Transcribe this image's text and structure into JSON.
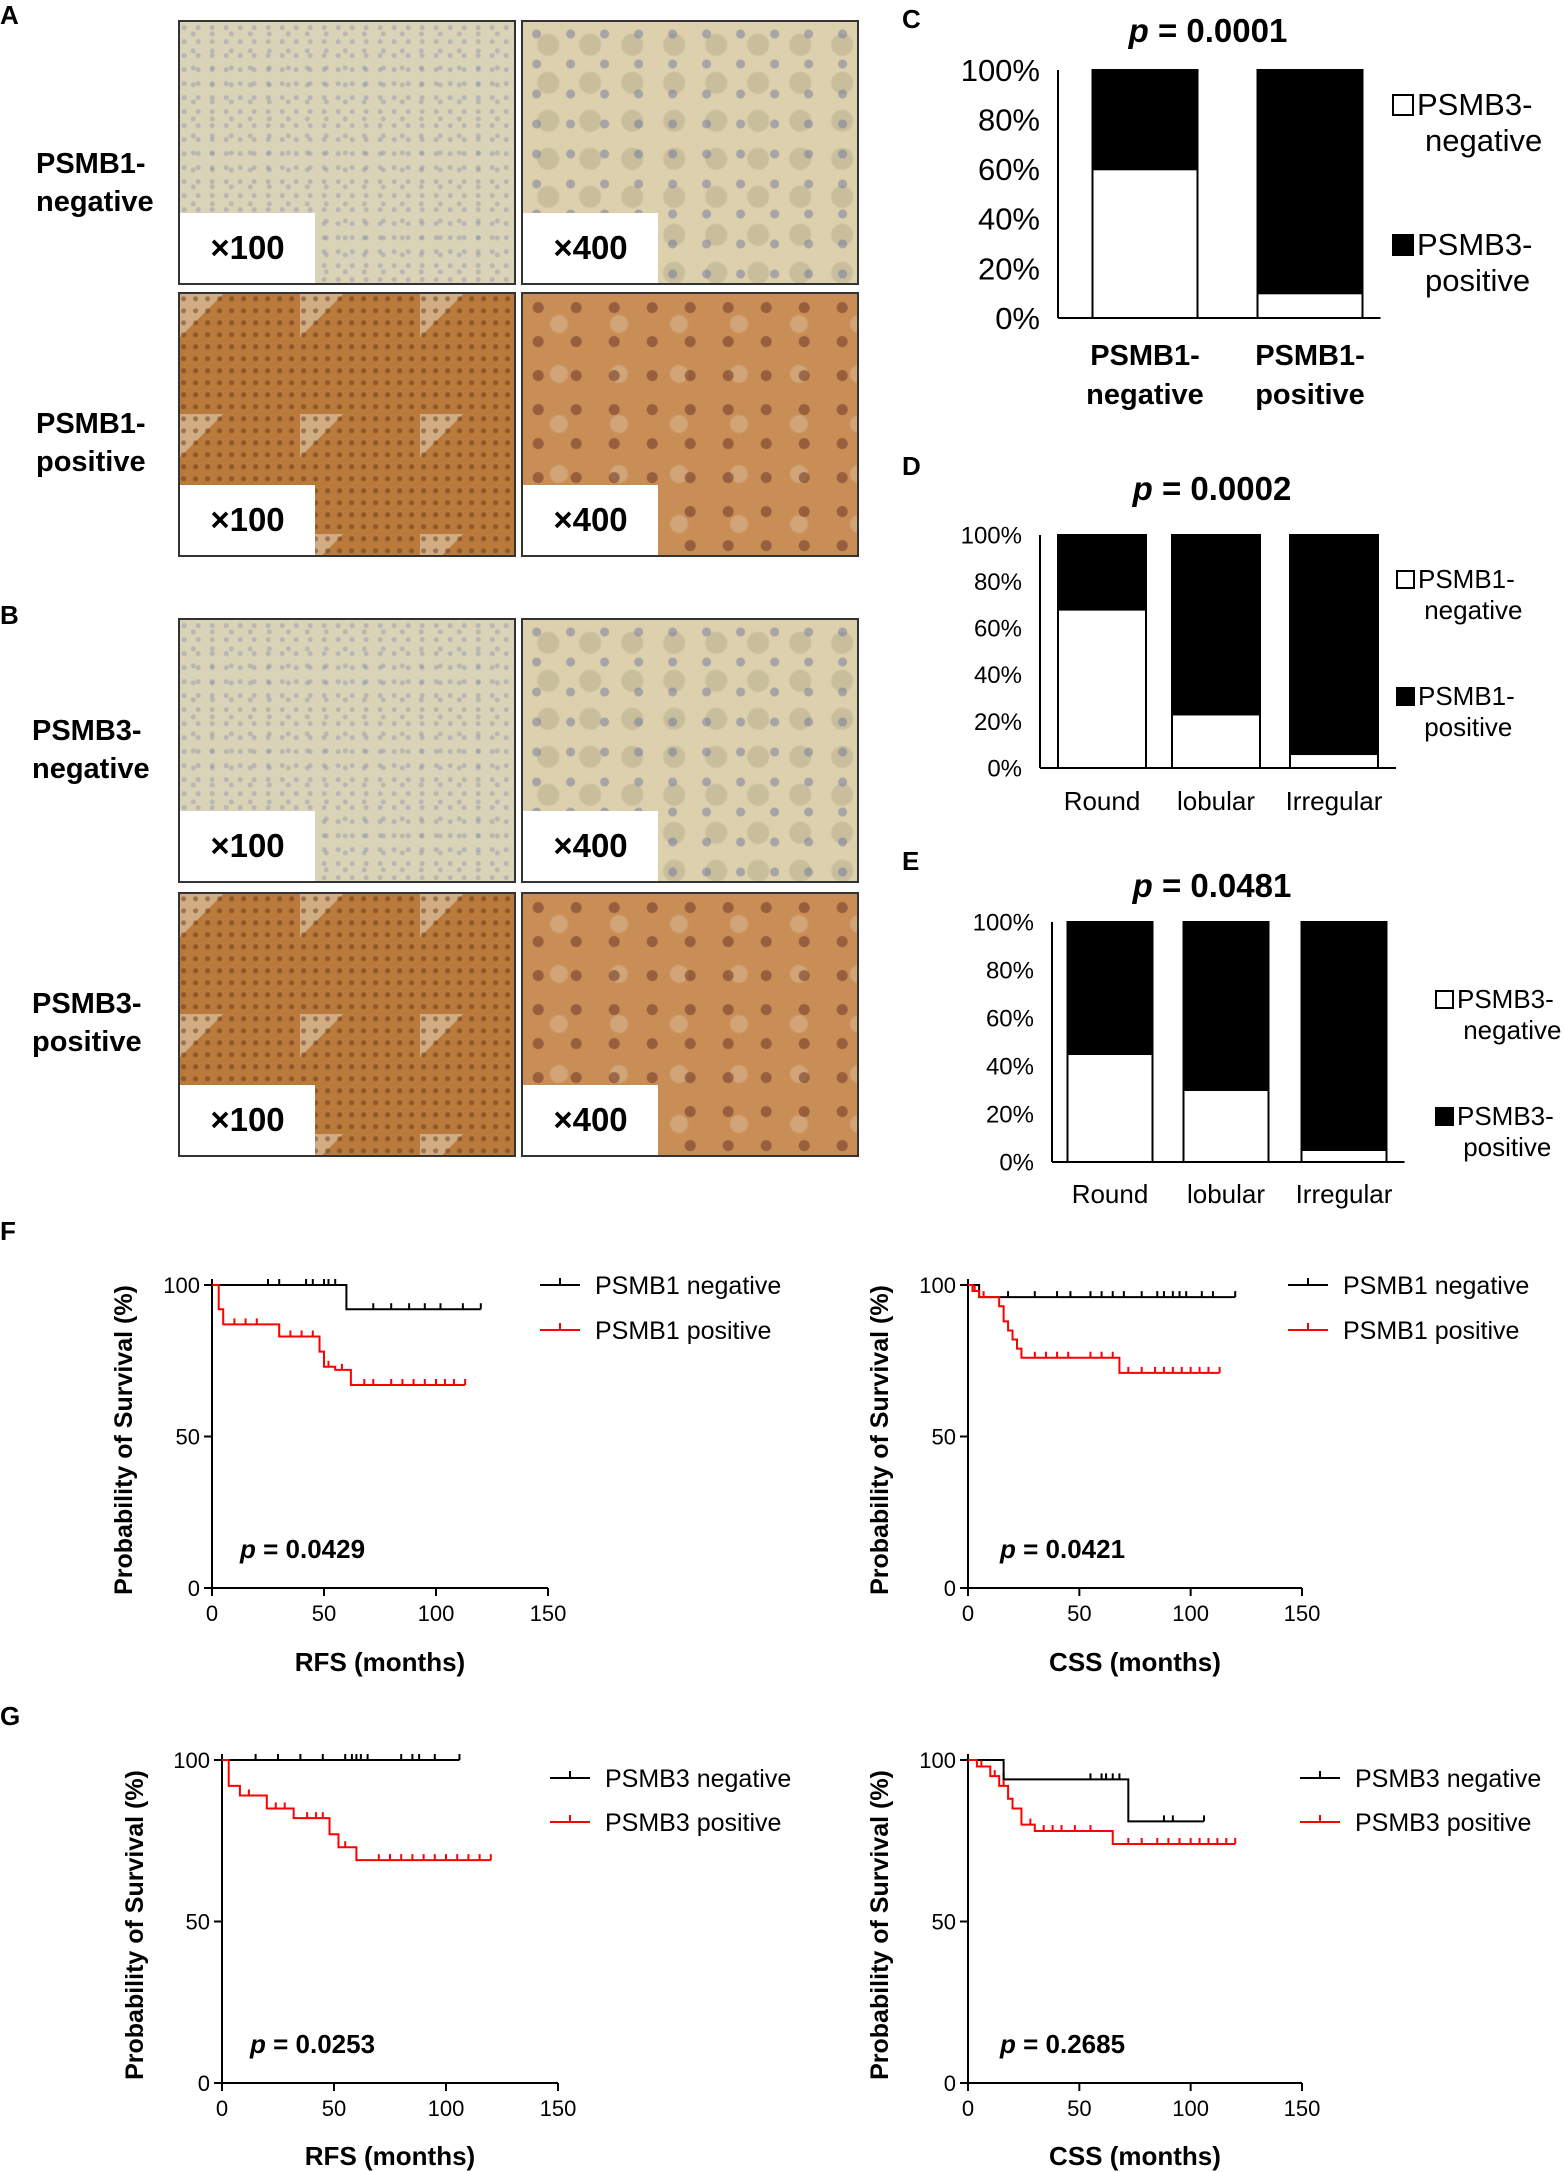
{
  "panels": {
    "A": {
      "letter": "A",
      "rows": [
        {
          "label_l1": "PSMB1-",
          "label_l2": "negative",
          "low_mag": "×100",
          "high_mag": "×400",
          "stain": "neg"
        },
        {
          "label_l1": "PSMB1-",
          "label_l2": "positive",
          "low_mag": "×100",
          "high_mag": "×400",
          "stain": "pos"
        }
      ]
    },
    "B": {
      "letter": "B",
      "rows": [
        {
          "label_l1": "PSMB3-",
          "label_l2": "negative",
          "low_mag": "×100",
          "high_mag": "×400",
          "stain": "neg"
        },
        {
          "label_l1": "PSMB3-",
          "label_l2": "positive",
          "low_mag": "×100",
          "high_mag": "×400",
          "stain": "pos"
        }
      ]
    }
  },
  "chart_data": [
    {
      "id": "C",
      "letter": "C",
      "type": "bar",
      "stacked": true,
      "title": "= 0.0001",
      "title_prefix": "p",
      "categories": [
        [
          "PSMB1-",
          "negative"
        ],
        [
          "PSMB1-",
          "positive"
        ]
      ],
      "series": [
        {
          "name": [
            "PSMB3-",
            "negative"
          ],
          "values": [
            60,
            10
          ],
          "color": "#ffffff"
        },
        {
          "name": [
            "PSMB3-",
            "positive"
          ],
          "values": [
            40,
            90
          ],
          "color": "#000000"
        }
      ],
      "yticks": [
        "0%",
        "20%",
        "40%",
        "60%",
        "80%",
        "100%"
      ],
      "ylim": [
        0,
        100
      ],
      "legend": "right"
    },
    {
      "id": "D",
      "letter": "D",
      "type": "bar",
      "stacked": true,
      "title": "= 0.0002",
      "title_prefix": "p",
      "categories": [
        [
          "Round"
        ],
        [
          "lobular"
        ],
        [
          "Irregular"
        ]
      ],
      "series": [
        {
          "name": [
            "PSMB1-",
            "negative"
          ],
          "values": [
            68,
            23,
            6
          ],
          "color": "#ffffff"
        },
        {
          "name": [
            "PSMB1-",
            "positive"
          ],
          "values": [
            32,
            77,
            94
          ],
          "color": "#000000"
        }
      ],
      "yticks": [
        "0%",
        "20%",
        "40%",
        "60%",
        "80%",
        "100%"
      ],
      "ylim": [
        0,
        100
      ],
      "legend": "right"
    },
    {
      "id": "E",
      "letter": "E",
      "type": "bar",
      "stacked": true,
      "title": "= 0.0481",
      "title_prefix": "p",
      "categories": [
        [
          "Round"
        ],
        [
          "lobular"
        ],
        [
          "Irregular"
        ]
      ],
      "series": [
        {
          "name": [
            "PSMB3-",
            "negative"
          ],
          "values": [
            45,
            30,
            5
          ],
          "color": "#ffffff"
        },
        {
          "name": [
            "PSMB3-",
            "positive"
          ],
          "values": [
            55,
            70,
            95
          ],
          "color": "#000000"
        }
      ],
      "yticks": [
        "0%",
        "20%",
        "40%",
        "60%",
        "80%",
        "100%"
      ],
      "ylim": [
        0,
        100
      ],
      "legend": "right"
    },
    {
      "id": "F1",
      "letter": "F",
      "type": "line",
      "step": true,
      "xlabel": "RFS (months)",
      "ylabel": "Probability of Survival (%)",
      "xticks": [
        0,
        50,
        100,
        150
      ],
      "yticks": [
        0,
        50,
        100
      ],
      "xlim": [
        0,
        150
      ],
      "ylim": [
        0,
        100
      ],
      "pvalue": "= 0.0429",
      "pvalue_prefix": "p",
      "legend": "top-right",
      "series": [
        {
          "name": "PSMB1 negative",
          "color": "#000000",
          "steps": [
            [
              0,
              100
            ],
            [
              60,
              92
            ],
            [
              120,
              92
            ]
          ],
          "censor": [
            25,
            30,
            42,
            45,
            50,
            52,
            55,
            72,
            80,
            88,
            95,
            102,
            112,
            120
          ]
        },
        {
          "name": "PSMB1 positive",
          "color": "#ff0000",
          "steps": [
            [
              0,
              100
            ],
            [
              3,
              92
            ],
            [
              5,
              87
            ],
            [
              30,
              83
            ],
            [
              48,
              78
            ],
            [
              50,
              73
            ],
            [
              55,
              72
            ],
            [
              62,
              67
            ],
            [
              113,
              67
            ]
          ],
          "censor": [
            10,
            15,
            20,
            35,
            40,
            45,
            52,
            58,
            68,
            72,
            80,
            85,
            90,
            95,
            100,
            104,
            108,
            113
          ]
        }
      ]
    },
    {
      "id": "F2",
      "letter": "",
      "type": "line",
      "step": true,
      "xlabel": "CSS (months)",
      "ylabel": "Probability of Survival (%)",
      "xticks": [
        0,
        50,
        100,
        150
      ],
      "yticks": [
        0,
        50,
        100
      ],
      "xlim": [
        0,
        150
      ],
      "ylim": [
        0,
        100
      ],
      "pvalue": "= 0.0421",
      "pvalue_prefix": "p",
      "legend": "top-right",
      "series": [
        {
          "name": "PSMB1 negative",
          "color": "#000000",
          "steps": [
            [
              0,
              100
            ],
            [
              5,
              96
            ],
            [
              120,
              96
            ]
          ],
          "censor": [
            18,
            30,
            40,
            46,
            55,
            60,
            65,
            70,
            78,
            85,
            88,
            92,
            95,
            98,
            105,
            110,
            120
          ]
        },
        {
          "name": "PSMB1 positive",
          "color": "#ff0000",
          "steps": [
            [
              0,
              100
            ],
            [
              2,
              98
            ],
            [
              5,
              96
            ],
            [
              14,
              93
            ],
            [
              16,
              88
            ],
            [
              18,
              85
            ],
            [
              20,
              82
            ],
            [
              22,
              79
            ],
            [
              24,
              76
            ],
            [
              68,
              71
            ],
            [
              113,
              71
            ]
          ],
          "censor": [
            3,
            7,
            30,
            35,
            40,
            45,
            55,
            60,
            65,
            72,
            78,
            84,
            88,
            92,
            96,
            100,
            104,
            108,
            113
          ]
        }
      ]
    },
    {
      "id": "G1",
      "letter": "G",
      "type": "line",
      "step": true,
      "xlabel": "RFS (months)",
      "ylabel": "Probability of Survival (%)",
      "xticks": [
        0,
        50,
        100,
        150
      ],
      "yticks": [
        0,
        50,
        100
      ],
      "xlim": [
        0,
        150
      ],
      "ylim": [
        0,
        100
      ],
      "pvalue": "= 0.0253",
      "pvalue_prefix": "p",
      "legend": "top-right",
      "series": [
        {
          "name": "PSMB3 negative",
          "color": "#000000",
          "steps": [
            [
              0,
              100
            ],
            [
              106,
              100
            ]
          ],
          "censor": [
            15,
            25,
            35,
            45,
            55,
            58,
            60,
            62,
            65,
            80,
            85,
            88,
            95,
            106
          ]
        },
        {
          "name": "PSMB3 positive",
          "color": "#ff0000",
          "steps": [
            [
              0,
              100
            ],
            [
              3,
              92
            ],
            [
              8,
              89
            ],
            [
              20,
              85
            ],
            [
              32,
              82
            ],
            [
              48,
              77
            ],
            [
              52,
              73
            ],
            [
              60,
              69
            ],
            [
              120,
              69
            ]
          ],
          "censor": [
            12,
            24,
            28,
            38,
            42,
            45,
            55,
            70,
            75,
            80,
            85,
            90,
            95,
            100,
            105,
            110,
            115,
            120
          ]
        }
      ]
    },
    {
      "id": "G2",
      "letter": "",
      "type": "line",
      "step": true,
      "xlabel": "CSS (months)",
      "ylabel": "Probability of Survival (%)",
      "xticks": [
        0,
        50,
        100,
        150
      ],
      "yticks": [
        0,
        50,
        100
      ],
      "xlim": [
        0,
        150
      ],
      "ylim": [
        0,
        100
      ],
      "pvalue": "= 0.2685",
      "pvalue_prefix": "p",
      "legend": "top-right",
      "series": [
        {
          "name": "PSMB3 negative",
          "color": "#000000",
          "steps": [
            [
              0,
              100
            ],
            [
              16,
              94
            ],
            [
              72,
              81
            ],
            [
              106,
              81
            ]
          ],
          "censor": [
            16,
            55,
            60,
            62,
            65,
            68,
            88,
            92,
            106
          ]
        },
        {
          "name": "PSMB3 positive",
          "color": "#ff0000",
          "steps": [
            [
              0,
              100
            ],
            [
              4,
              98
            ],
            [
              10,
              95
            ],
            [
              14,
              92
            ],
            [
              18,
              88
            ],
            [
              20,
              85
            ],
            [
              24,
              80
            ],
            [
              30,
              78
            ],
            [
              65,
              74
            ],
            [
              120,
              74
            ]
          ],
          "censor": [
            6,
            12,
            16,
            28,
            34,
            38,
            42,
            48,
            55,
            72,
            78,
            85,
            90,
            95,
            100,
            104,
            108,
            112,
            116,
            120
          ]
        }
      ]
    }
  ]
}
